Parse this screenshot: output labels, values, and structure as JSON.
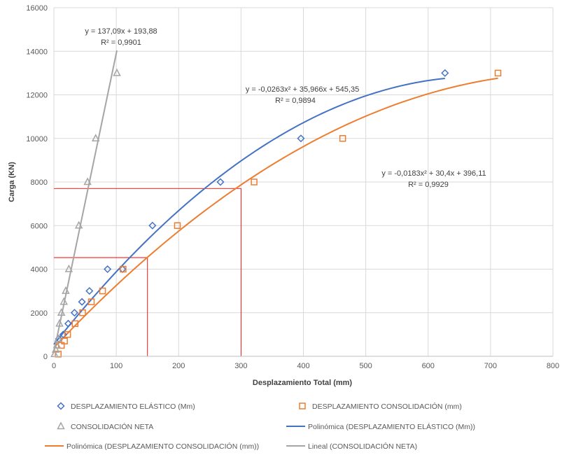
{
  "chart_data": {
    "type": "scatter",
    "xlabel": "Desplazamiento Total (mm)",
    "ylabel": "Carga (KN)",
    "xlim": [
      0,
      800
    ],
    "ylim": [
      0,
      16000
    ],
    "x_ticks": [
      "0",
      "100",
      "200",
      "300",
      "400",
      "500",
      "600",
      "700",
      "800"
    ],
    "y_ticks": [
      "0",
      "2000",
      "4000",
      "6000",
      "8000",
      "10000",
      "12000",
      "14000",
      "16000"
    ],
    "grid": true,
    "legend_position": "bottom",
    "series": [
      {
        "name": "DESPLAZAMIENTO ELÁSTICO (Mm)",
        "marker": "diamond",
        "color": "#4472C4",
        "points": [
          [
            8,
            800
          ],
          [
            15,
            1000
          ],
          [
            23,
            1500
          ],
          [
            33,
            2000
          ],
          [
            45,
            2500
          ],
          [
            57,
            3000
          ],
          [
            86,
            4000
          ],
          [
            110,
            4000
          ],
          [
            158,
            6000
          ],
          [
            267,
            8000
          ],
          [
            396,
            10000
          ],
          [
            627,
            13000
          ]
        ]
      },
      {
        "name": "DESPLAZAMIENTO CONSOLIDACIÓN (mm)",
        "marker": "square",
        "color": "#ED7D31",
        "points": [
          [
            7,
            100
          ],
          [
            12,
            500
          ],
          [
            17,
            700
          ],
          [
            22,
            1000
          ],
          [
            34,
            1500
          ],
          [
            46,
            2000
          ],
          [
            60,
            2500
          ],
          [
            78,
            3000
          ],
          [
            111,
            4000
          ],
          [
            198,
            6000
          ],
          [
            321,
            8000
          ],
          [
            463,
            10000
          ],
          [
            712,
            13000
          ]
        ]
      },
      {
        "name": "CONSOLIDACIÓN NETA",
        "marker": "triangle",
        "color": "#A5A5A5",
        "points": [
          [
            1,
            100
          ],
          [
            3,
            300
          ],
          [
            5,
            500
          ],
          [
            7,
            800
          ],
          [
            9,
            1500
          ],
          [
            12,
            2000
          ],
          [
            16,
            2500
          ],
          [
            19,
            3000
          ],
          [
            24,
            4000
          ],
          [
            40,
            6000
          ],
          [
            54,
            8000
          ],
          [
            67,
            10000
          ],
          [
            101,
            13000
          ]
        ]
      }
    ],
    "trendlines": [
      {
        "name": "Polinómica (DESPLAZAMIENTO ELÁSTICO (Mm))",
        "kind": "poly2",
        "coef": [
          -0.0263,
          35.966,
          545.35
        ],
        "x_range": [
          0,
          627
        ],
        "color": "#4472C4",
        "equation": "y = -0,0263x² + 35,966x + 545,35",
        "r2": "R² = 0,9894"
      },
      {
        "name": "Polinómica (DESPLAZAMIENTO CONSOLIDACIÓN (mm))",
        "kind": "poly2",
        "coef": [
          -0.0183,
          30.4,
          396.11
        ],
        "x_range": [
          0,
          712
        ],
        "color": "#ED7D31",
        "equation": "y = -0,0183x² + 30,4x + 396,11",
        "r2": "R² = 0,9929"
      },
      {
        "name": "Lineal (CONSOLIDACIÓN NETA)",
        "kind": "linear",
        "coef": [
          137.09,
          193.88
        ],
        "x_range": [
          0,
          101
        ],
        "color": "#A5A5A5",
        "equation": "y = 137,09x + 193,88",
        "r2": "R² = 0,9901"
      }
    ],
    "reference_lines": [
      {
        "x": 150,
        "y": 4530,
        "color": "#FF0000"
      },
      {
        "x": 300,
        "y": 7700,
        "color": "#FF0000"
      }
    ],
    "legend": [
      {
        "label": "DESPLAZAMIENTO ELÁSTICO (Mm)",
        "kind": "marker",
        "marker": "diamond",
        "color": "#4472C4"
      },
      {
        "label": "DESPLAZAMIENTO CONSOLIDACIÓN (mm)",
        "kind": "marker",
        "marker": "square",
        "color": "#ED7D31"
      },
      {
        "label": "CONSOLIDACIÓN NETA",
        "kind": "marker",
        "marker": "triangle",
        "color": "#A5A5A5"
      },
      {
        "label": "Polinómica (DESPLAZAMIENTO ELÁSTICO (Mm))",
        "kind": "line",
        "color": "#4472C4"
      },
      {
        "label": "Polinómica (DESPLAZAMIENTO CONSOLIDACIÓN (mm))",
        "kind": "line",
        "color": "#ED7D31"
      },
      {
        "label": "Lineal (CONSOLIDACIÓN NETA)",
        "kind": "line",
        "color": "#A5A5A5"
      }
    ]
  }
}
